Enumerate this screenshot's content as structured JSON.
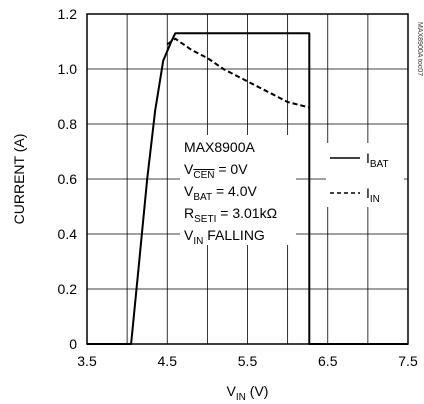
{
  "chart_data": {
    "type": "line",
    "title": "",
    "xlabel": {
      "main": "V",
      "sub": "IN",
      "unit": " (V)"
    },
    "ylabel": "CURRENT (A)",
    "xlim": [
      3.5,
      7.5
    ],
    "ylim": [
      0,
      1.2
    ],
    "x_ticks": [
      "3.5",
      "4.5",
      "5.5",
      "6.5",
      "7.5"
    ],
    "x_tick_values": [
      3.5,
      4.5,
      5.5,
      6.5,
      7.5
    ],
    "y_ticks": [
      "0",
      "0.2",
      "0.4",
      "0.6",
      "0.8",
      "1.0",
      "1.2"
    ],
    "y_tick_values": [
      0,
      0.2,
      0.4,
      0.6,
      0.8,
      1.0,
      1.2
    ],
    "grid": true,
    "watermark": "MAX8900A toc07",
    "legend": {
      "placement": "right",
      "entries": [
        {
          "main": "I",
          "sub": "BAT",
          "style": "solid"
        },
        {
          "main": "I",
          "sub": "IN",
          "style": "dashed"
        }
      ]
    },
    "annotation": {
      "line1": "MAX8900A",
      "line2_main": "V",
      "line2_sub": "CEN",
      "line2_value": " = 0V",
      "line3_main": "V",
      "line3_sub": "BAT",
      "line3_value": " = 4.0V",
      "line4_main": "R",
      "line4_sub": "SETI",
      "line4_value": " = 3.01kΩ",
      "line5_main": "V",
      "line5_sub": "IN",
      "line5_value": " FALLING"
    },
    "series": [
      {
        "style": "solid",
        "x": [
          3.5,
          4.05,
          4.15,
          4.25,
          4.35,
          4.45,
          4.55,
          4.6,
          4.8,
          5.5,
          6.0,
          6.27,
          6.27,
          6.5,
          7.5
        ],
        "y": [
          0,
          0,
          0.3,
          0.6,
          0.85,
          1.03,
          1.1,
          1.13,
          1.13,
          1.13,
          1.13,
          1.13,
          0,
          0,
          0
        ]
      },
      {
        "style": "dashed",
        "x": [
          4.5,
          4.55,
          4.6,
          4.7,
          4.8,
          5.0,
          5.2,
          5.4,
          5.6,
          5.8,
          6.0,
          6.27
        ],
        "y": [
          1.09,
          1.1,
          1.11,
          1.09,
          1.07,
          1.04,
          1.0,
          0.97,
          0.94,
          0.91,
          0.88,
          0.86
        ]
      }
    ]
  }
}
